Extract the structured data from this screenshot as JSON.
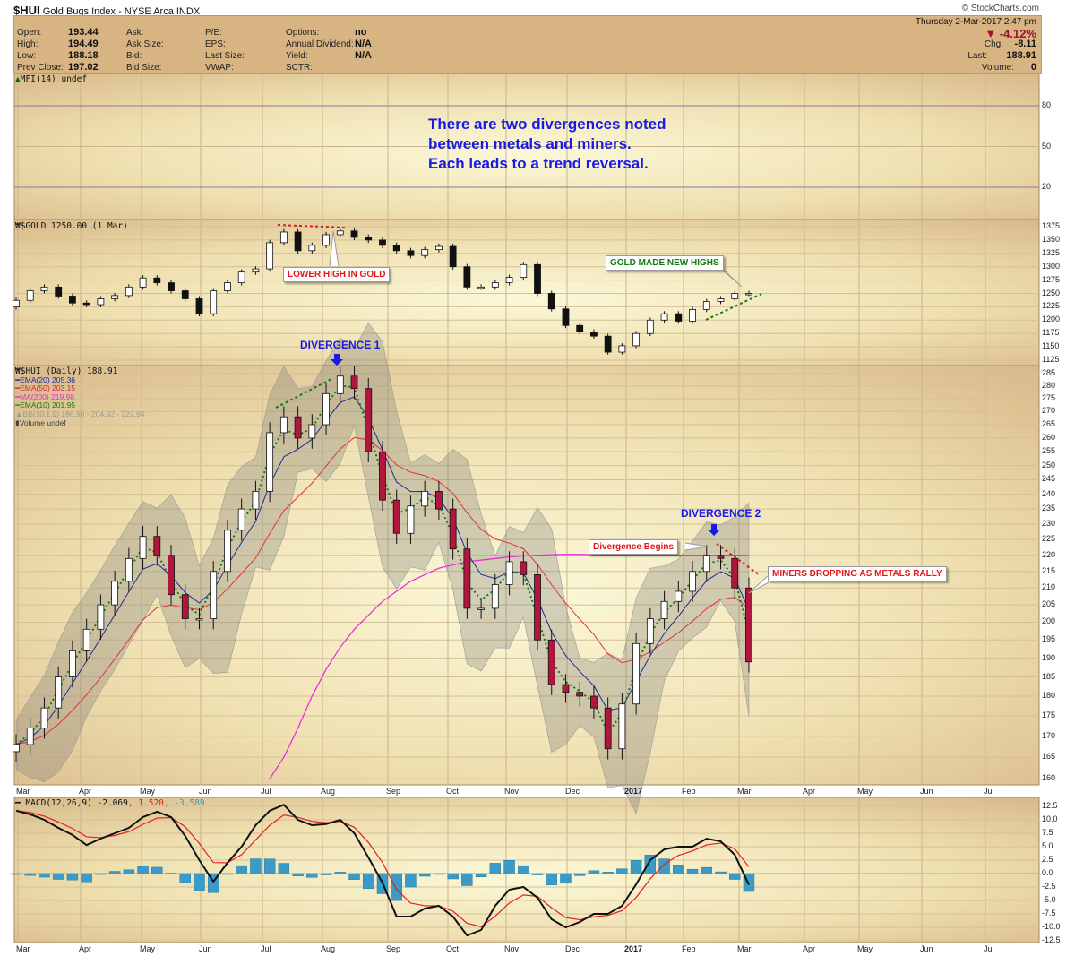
{
  "header": {
    "symbol": "$HUI",
    "name": "Gold Bugs Index - NYSE Arca  INDX",
    "copyright": "© StockCharts.com",
    "datetime": "Thursday  2-Mar-2017  2:47 pm",
    "change_pct": "-4.12%",
    "chg_label": "Chg:",
    "chg": "-8.11",
    "last_label": "Last:",
    "last": "188.91",
    "volume_label": "Volume:",
    "volume": "0",
    "colors": {
      "down": "#a0103a",
      "panel": "#d8b482"
    }
  },
  "quote": {
    "col1": [
      [
        "Open:",
        "193.44"
      ],
      [
        "High:",
        "194.49"
      ],
      [
        "Low:",
        "188.18"
      ],
      [
        "Prev Close:",
        "197.02"
      ]
    ],
    "col2": [
      "Ask:",
      "Ask Size:",
      "Bid:",
      "Bid Size:"
    ],
    "col3": [
      "P/E:",
      "EPS:",
      "Last Size:",
      "VWAP:"
    ],
    "col4": [
      [
        "Options:",
        "no"
      ],
      [
        "Annual Dividend:",
        "N/A"
      ],
      [
        "Yield:",
        "N/A"
      ],
      [
        "SCTR:",
        ""
      ]
    ]
  },
  "legends": {
    "mfi": "MFI(14) undef",
    "gold": "$GOLD 1250.00 (1 Mar)",
    "hui": "$HUI (Daily) 188.91",
    "ema20": "EMA(20) 205.36",
    "ema50": "EMA(50) 203.15",
    "ma200": "MA(200) 219.98",
    "ema10": "EMA(10) 201.95",
    "bb": "BB(10,1.9) 186.90 - 204.92 - 222.94",
    "volume": "Volume undef",
    "macd": "MACD(12,26,9) -2.069",
    "macd_signal": ", 1.520",
    "macd_hist": ", -3.589"
  },
  "annotations": {
    "headline": [
      "There are two divergences noted",
      "between metals and miners.",
      "Each leads to a trend reversal."
    ],
    "lower_high": "LOWER HIGH IN GOLD",
    "gold_new_highs": "GOLD MADE NEW HIGHS",
    "divergence1": "DIVERGENCE 1",
    "divergence2": "DIVERGENCE 2",
    "divergence_begins": "Divergence Begins",
    "miners_dropping": "MINERS DROPPING AS METALS RALLY"
  },
  "chart_data": [
    {
      "type": "line",
      "title": "MFI(14)",
      "yticks": [
        80,
        50,
        20
      ],
      "ylim": [
        0,
        100
      ]
    },
    {
      "type": "candlestick",
      "title": "$GOLD",
      "frequency": "weekly approx (from 2016-03-04)",
      "yticks": [
        1375,
        1350,
        1325,
        1300,
        1275,
        1250,
        1225,
        1200,
        1175,
        1150,
        1125
      ],
      "close": [
        1237,
        1255,
        1262,
        1245,
        1232,
        1229,
        1240,
        1246,
        1262,
        1279,
        1270,
        1255,
        1240,
        1212,
        1255,
        1270,
        1290,
        1296,
        1345,
        1365,
        1330,
        1340,
        1360,
        1367,
        1355,
        1350,
        1340,
        1330,
        1321,
        1332,
        1338,
        1300,
        1262,
        1262,
        1270,
        1280,
        1304,
        1250,
        1221,
        1190,
        1178,
        1170,
        1140,
        1152,
        1175,
        1200,
        1212,
        1198,
        1220,
        1235,
        1240,
        1250,
        1250
      ]
    },
    {
      "type": "candlestick",
      "title": "$HUI (Daily)",
      "scale": "log",
      "frequency": "weekly approx (from 2016-03-04)",
      "yticks": [
        285,
        280,
        275,
        270,
        265,
        260,
        255,
        250,
        245,
        240,
        235,
        230,
        225,
        220,
        215,
        210,
        205,
        200,
        195,
        190,
        185,
        180,
        175,
        170,
        165,
        160
      ],
      "close": [
        168,
        172,
        177,
        185,
        192,
        198,
        205,
        212,
        219,
        226,
        220,
        208,
        201,
        201,
        215,
        228,
        235,
        241,
        262,
        268,
        260,
        265,
        277,
        284,
        279,
        255,
        238,
        227,
        236,
        241,
        235,
        222,
        204,
        204,
        211,
        218,
        214,
        195,
        183,
        181,
        180,
        177,
        167,
        178,
        194,
        201,
        206,
        209,
        215,
        220,
        219,
        210,
        189
      ],
      "ma200": [
        null,
        null,
        null,
        null,
        null,
        null,
        null,
        null,
        null,
        null,
        null,
        null,
        null,
        null,
        null,
        null,
        null,
        null,
        160,
        165,
        172,
        180,
        187,
        193,
        198,
        202,
        206,
        209,
        212,
        214,
        216,
        217,
        218,
        218.5,
        219,
        219.5,
        219.8,
        220,
        220.2,
        220.3,
        220.3,
        220.2,
        220.1,
        220,
        220,
        220,
        220,
        220,
        220,
        220,
        220,
        220,
        219.98
      ]
    },
    {
      "type": "line",
      "title": "MACD(12,26,9)",
      "yticks": [
        12.5,
        10.0,
        7.5,
        5.0,
        2.5,
        0.0,
        -2.5,
        -5.0,
        -7.5,
        -10.0,
        -12.5
      ],
      "macd": [
        11.7,
        11,
        10,
        8.5,
        7.2,
        5.3,
        6.5,
        7.5,
        8.5,
        10.5,
        11.5,
        10.5,
        7,
        2.5,
        -1.5,
        2,
        5,
        9,
        11.7,
        12.8,
        10,
        9,
        9.2,
        10,
        7.5,
        3,
        -1.7,
        -8,
        -8,
        -6.5,
        -6,
        -8,
        -11.5,
        -10.5,
        -6,
        -3,
        -2.5,
        -4.5,
        -8.5,
        -10,
        -9,
        -7.5,
        -7.5,
        -6,
        -2,
        2.5,
        4.5,
        5,
        5,
        6.5,
        6,
        3.5,
        -2.1
      ]
    }
  ],
  "xaxis": {
    "months": [
      "Mar",
      "Apr",
      "May",
      "Jun",
      "Jul",
      "Aug",
      "Sep",
      "Oct",
      "Nov",
      "Dec",
      "2017",
      "Feb",
      "Mar",
      "Apr",
      "May",
      "Jun",
      "Jul"
    ]
  }
}
